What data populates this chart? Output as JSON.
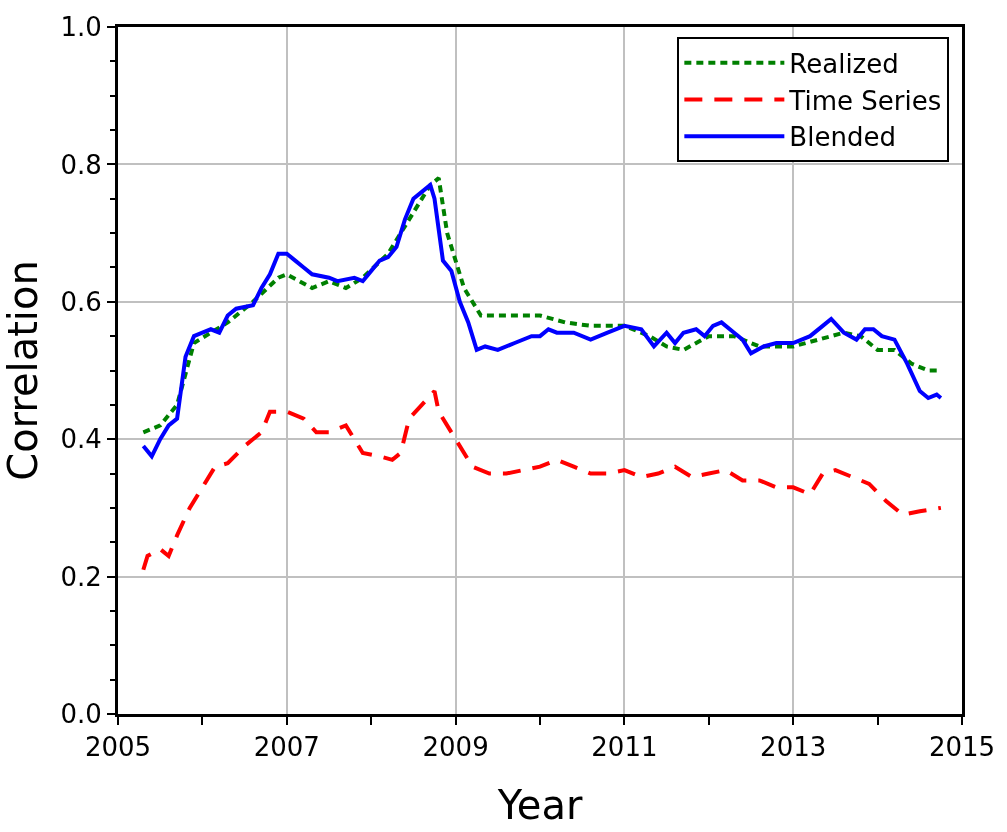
{
  "chart_data": {
    "type": "line",
    "xlabel": "Year",
    "ylabel": "Correlation",
    "xlim": [
      2005,
      2015
    ],
    "ylim": [
      0,
      1
    ],
    "xticks": [
      2005,
      {
        "value": 2006,
        "label": null
      },
      2007,
      {
        "value": 2008,
        "label": null
      },
      2009,
      {
        "value": 2010,
        "label": null
      },
      2011,
      {
        "value": 2012,
        "label": null
      },
      2013,
      {
        "value": 2014,
        "label": null
      },
      2015
    ],
    "yticks": [
      {
        "value": 0,
        "label": "0.0"
      },
      {
        "value": 0.05,
        "label": null
      },
      {
        "value": 0.1,
        "label": null
      },
      {
        "value": 0.15,
        "label": null
      },
      {
        "value": 0.2,
        "label": "0.2"
      },
      {
        "value": 0.25,
        "label": null
      },
      {
        "value": 0.3,
        "label": null
      },
      {
        "value": 0.35,
        "label": null
      },
      {
        "value": 0.4,
        "label": "0.4"
      },
      {
        "value": 0.45,
        "label": null
      },
      {
        "value": 0.5,
        "label": null
      },
      {
        "value": 0.55,
        "label": null
      },
      {
        "value": 0.6,
        "label": "0.6"
      },
      {
        "value": 0.65,
        "label": null
      },
      {
        "value": 0.7,
        "label": null
      },
      {
        "value": 0.75,
        "label": null
      },
      {
        "value": 0.8,
        "label": "0.8"
      },
      {
        "value": 0.85,
        "label": null
      },
      {
        "value": 0.9,
        "label": null
      },
      {
        "value": 0.95,
        "label": null
      },
      {
        "value": 1,
        "label": "1.0"
      }
    ],
    "grid": true,
    "legend": "top right",
    "marker": "none",
    "series": [
      {
        "name": "Realized",
        "color": "#008000",
        "line_style": "dotted",
        "x": [
          2005.3,
          2005.5,
          2005.7,
          2005.9,
          2006.3,
          2006.6,
          2006.9,
          2007.0,
          2007.3,
          2007.5,
          2007.7,
          2007.9,
          2008.2,
          2008.5,
          2008.7,
          2008.8,
          2008.9,
          2009.1,
          2009.3,
          2009.6,
          2010.0,
          2010.3,
          2010.6,
          2011.0,
          2011.3,
          2011.5,
          2011.7,
          2012.0,
          2012.3,
          2012.6,
          2013.0,
          2013.3,
          2013.6,
          2013.8,
          2014.0,
          2014.2,
          2014.4,
          2014.6,
          2014.75
        ],
        "values": [
          0.41,
          0.42,
          0.45,
          0.54,
          0.57,
          0.6,
          0.635,
          0.64,
          0.62,
          0.63,
          0.62,
          0.635,
          0.67,
          0.73,
          0.77,
          0.78,
          0.7,
          0.62,
          0.58,
          0.58,
          0.58,
          0.57,
          0.565,
          0.565,
          0.55,
          0.535,
          0.53,
          0.55,
          0.55,
          0.535,
          0.535,
          0.545,
          0.555,
          0.55,
          0.53,
          0.53,
          0.51,
          0.5,
          0.5
        ]
      },
      {
        "name": "Time Series",
        "color": "#ff0000",
        "line_style": "dashed",
        "x": [
          2005.3,
          2005.35,
          2005.5,
          2005.6,
          2005.7,
          2005.85,
          2006.0,
          2006.15,
          2006.3,
          2006.5,
          2006.7,
          2006.8,
          2007.0,
          2007.2,
          2007.35,
          2007.5,
          2007.7,
          2007.9,
          2008.1,
          2008.25,
          2008.35,
          2008.45,
          2008.6,
          2008.75,
          2008.8,
          2009.0,
          2009.2,
          2009.4,
          2009.6,
          2009.8,
          2010.0,
          2010.2,
          2010.4,
          2010.6,
          2010.8,
          2011.0,
          2011.2,
          2011.4,
          2011.6,
          2011.8,
          2012.0,
          2012.2,
          2012.4,
          2012.6,
          2012.8,
          2013.0,
          2013.2,
          2013.35,
          2013.5,
          2013.7,
          2013.9,
          2014.1,
          2014.3,
          2014.5,
          2014.75
        ],
        "values": [
          0.21,
          0.23,
          0.24,
          0.23,
          0.26,
          0.3,
          0.33,
          0.36,
          0.365,
          0.39,
          0.41,
          0.44,
          0.44,
          0.43,
          0.41,
          0.41,
          0.42,
          0.38,
          0.375,
          0.37,
          0.38,
          0.43,
          0.45,
          0.47,
          0.44,
          0.4,
          0.36,
          0.35,
          0.35,
          0.355,
          0.36,
          0.37,
          0.36,
          0.35,
          0.35,
          0.355,
          0.345,
          0.35,
          0.36,
          0.345,
          0.35,
          0.355,
          0.34,
          0.34,
          0.33,
          0.33,
          0.32,
          0.35,
          0.355,
          0.345,
          0.335,
          0.31,
          0.29,
          0.295,
          0.3
        ]
      },
      {
        "name": "Blended",
        "color": "#0000ff",
        "line_style": "solid",
        "x": [
          2005.3,
          2005.4,
          2005.5,
          2005.6,
          2005.7,
          2005.8,
          2005.9,
          2006.0,
          2006.1,
          2006.2,
          2006.3,
          2006.4,
          2006.6,
          2006.7,
          2006.8,
          2006.9,
          2007.0,
          2007.1,
          2007.2,
          2007.3,
          2007.5,
          2007.6,
          2007.8,
          2007.9,
          2008.0,
          2008.1,
          2008.2,
          2008.3,
          2008.4,
          2008.5,
          2008.6,
          2008.7,
          2008.75,
          2008.85,
          2008.95,
          2009.05,
          2009.15,
          2009.25,
          2009.35,
          2009.5,
          2009.7,
          2009.9,
          2010.0,
          2010.1,
          2010.2,
          2010.4,
          2010.6,
          2010.8,
          2011.0,
          2011.2,
          2011.35,
          2011.5,
          2011.6,
          2011.7,
          2011.85,
          2011.95,
          2012.05,
          2012.15,
          2012.3,
          2012.4,
          2012.5,
          2012.65,
          2012.8,
          2013.0,
          2013.2,
          2013.35,
          2013.45,
          2013.6,
          2013.75,
          2013.85,
          2013.95,
          2014.05,
          2014.2,
          2014.35,
          2014.5,
          2014.6,
          2014.7,
          2014.75
        ],
        "values": [
          0.39,
          0.375,
          0.4,
          0.42,
          0.43,
          0.52,
          0.55,
          0.555,
          0.56,
          0.555,
          0.58,
          0.59,
          0.595,
          0.62,
          0.64,
          0.67,
          0.67,
          0.66,
          0.65,
          0.64,
          0.635,
          0.63,
          0.635,
          0.63,
          0.645,
          0.66,
          0.665,
          0.68,
          0.72,
          0.75,
          0.76,
          0.77,
          0.75,
          0.66,
          0.645,
          0.6,
          0.57,
          0.53,
          0.535,
          0.53,
          0.54,
          0.55,
          0.55,
          0.56,
          0.555,
          0.555,
          0.545,
          0.555,
          0.565,
          0.56,
          0.535,
          0.555,
          0.54,
          0.555,
          0.56,
          0.55,
          0.565,
          0.57,
          0.555,
          0.545,
          0.525,
          0.535,
          0.54,
          0.54,
          0.55,
          0.565,
          0.575,
          0.555,
          0.545,
          0.56,
          0.56,
          0.55,
          0.545,
          0.51,
          0.47,
          0.46,
          0.465,
          0.46
        ]
      }
    ]
  }
}
